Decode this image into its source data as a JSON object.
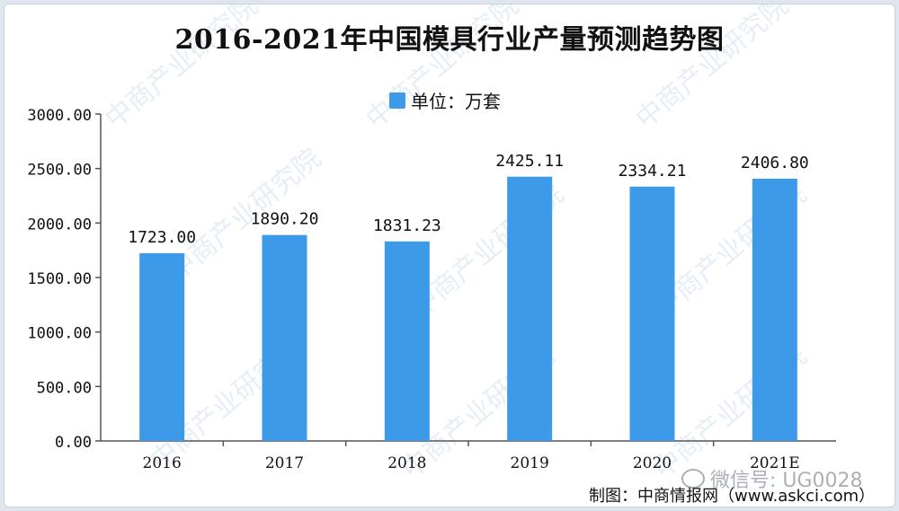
{
  "chart_data": {
    "type": "bar",
    "title": "2016-2021年中国模具行业产量预测趋势图",
    "legend": [
      "单位：万套"
    ],
    "categories": [
      "2016",
      "2017",
      "2018",
      "2019",
      "2020",
      "2021E"
    ],
    "series": [
      {
        "name": "单位：万套",
        "values": [
          1723.0,
          1890.2,
          1831.23,
          2425.11,
          2334.21,
          2406.8
        ]
      }
    ],
    "data_labels": [
      "1723.00",
      "1890.20",
      "1831.23",
      "2425.11",
      "2334.21",
      "2406.80"
    ],
    "y_ticks": [
      "0.00",
      "500.00",
      "1000.00",
      "1500.00",
      "2000.00",
      "2500.00",
      "3000.00"
    ],
    "ylim": [
      0,
      3000
    ],
    "grid": false,
    "legend_position": "top-center",
    "bar_color": "#3d9ae8"
  },
  "watermark": {
    "text": "中商产业研究院"
  },
  "footer": {
    "wechat_text": "微信号: UG0028",
    "credit": "制图：中商情报网（www.askci.com）"
  }
}
